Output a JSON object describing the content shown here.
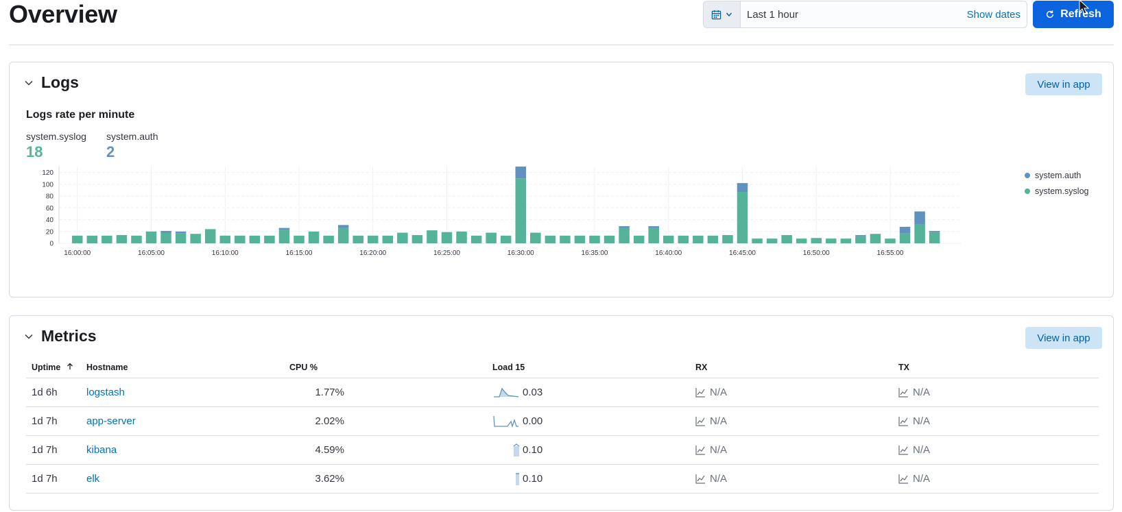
{
  "page_title": "Overview",
  "date_picker": {
    "label": "Last 1 hour",
    "show_dates": "Show dates"
  },
  "refresh_label": "Refresh",
  "logs": {
    "title": "Logs",
    "view_in_app": "View in app",
    "chart_title": "Logs rate per minute",
    "stats": [
      {
        "label": "system.syslog",
        "value": "18",
        "color": "#54b399"
      },
      {
        "label": "system.auth",
        "value": "2",
        "color": "#6092c0"
      }
    ]
  },
  "metrics": {
    "title": "Metrics",
    "view_in_app": "View in app",
    "columns": [
      "Uptime",
      "Hostname",
      "CPU %",
      "Load 15",
      "RX",
      "TX"
    ],
    "rows": [
      {
        "uptime": "1d 6h",
        "hostname": "logstash",
        "cpu": "1.77%",
        "load": "0.03",
        "rx": "N/A",
        "tx": "N/A"
      },
      {
        "uptime": "1d 7h",
        "hostname": "app-server",
        "cpu": "2.02%",
        "load": "0.00",
        "rx": "N/A",
        "tx": "N/A"
      },
      {
        "uptime": "1d 7h",
        "hostname": "kibana",
        "cpu": "4.59%",
        "load": "0.10",
        "rx": "N/A",
        "tx": "N/A"
      },
      {
        "uptime": "1d 7h",
        "hostname": "elk",
        "cpu": "3.62%",
        "load": "0.10",
        "rx": "N/A",
        "tx": "N/A"
      }
    ]
  },
  "colors": {
    "syslog": "#54b399",
    "auth": "#6092c0",
    "primary": "#0b64dd",
    "link": "#0071c2"
  },
  "chart_data": {
    "type": "bar",
    "stacked": true,
    "title": "Logs rate per minute",
    "ylim": [
      0,
      130
    ],
    "yticks": [
      0,
      20,
      40,
      60,
      80,
      100,
      120
    ],
    "xtick_labels": [
      "16:00:00",
      "16:05:00",
      "16:10:00",
      "16:15:00",
      "16:20:00",
      "16:25:00",
      "16:30:00",
      "16:35:00",
      "16:40:00",
      "16:45:00",
      "16:50:00",
      "16:55:00"
    ],
    "legend_position": "right",
    "series": [
      {
        "name": "system.syslog",
        "color": "#54b399",
        "values": [
          13,
          13,
          13,
          14,
          13,
          20,
          18,
          17,
          16,
          24,
          13,
          13,
          13,
          13,
          23,
          13,
          20,
          13,
          26,
          13,
          13,
          13,
          18,
          14,
          22,
          19,
          20,
          13,
          18,
          13,
          110,
          18,
          13,
          13,
          13,
          13,
          13,
          26,
          13,
          26,
          13,
          13,
          13,
          13,
          14,
          87,
          8,
          8,
          14,
          8,
          9,
          8,
          8,
          12,
          16,
          8,
          17,
          32,
          19
        ]
      },
      {
        "name": "system.auth",
        "color": "#6092c0",
        "values": [
          0,
          0,
          0,
          0,
          0,
          0,
          3,
          3,
          0,
          0,
          0,
          0,
          0,
          0,
          3,
          0,
          0,
          0,
          5,
          0,
          0,
          0,
          0,
          0,
          0,
          0,
          0,
          0,
          0,
          0,
          23,
          0,
          0,
          0,
          0,
          0,
          0,
          3,
          0,
          3,
          0,
          0,
          0,
          0,
          0,
          15,
          0,
          0,
          0,
          0,
          0,
          0,
          0,
          2,
          0,
          0,
          11,
          22,
          2
        ]
      }
    ]
  }
}
